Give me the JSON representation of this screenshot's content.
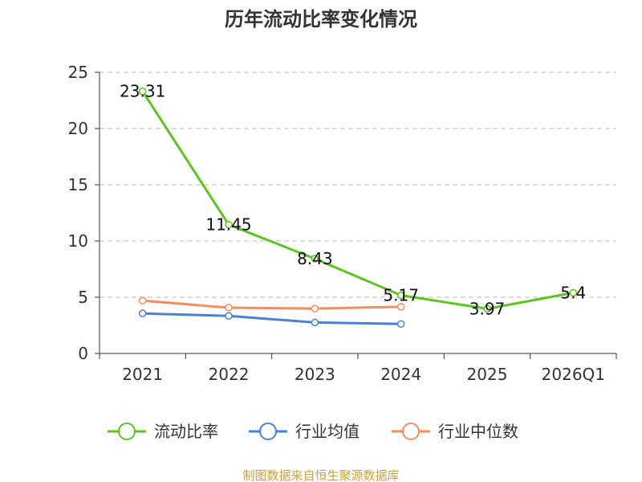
{
  "colors": {
    "current_ratio": "#5cc41e",
    "industry_avg": "#4a7fd9",
    "industry_median": "#f58d5b",
    "axis": "#333333",
    "grid": "#bbbbbb",
    "source": "#c8a23e"
  },
  "source_text": "制图数据来自恒生聚源数据库",
  "chart_data": {
    "type": "line",
    "title": "历年流动比率变化情况",
    "categories": [
      "2021",
      "2022",
      "2023",
      "2024",
      "2025",
      "2026Q1"
    ],
    "ylim": [
      0,
      25
    ],
    "yticks": [
      0,
      5,
      10,
      15,
      20,
      25
    ],
    "grid": true,
    "legend_position": "bottom",
    "series": [
      {
        "name": "流动比率",
        "color_key": "current_ratio",
        "values": [
          23.31,
          11.45,
          8.43,
          5.17,
          3.97,
          5.4
        ],
        "labels": [
          "23.31",
          "11.45",
          "8.43",
          "5.17",
          "3.97",
          "5.4"
        ]
      },
      {
        "name": "行业均值",
        "color_key": "industry_avg",
        "values": [
          3.56,
          3.34,
          2.76,
          2.62,
          null,
          null
        ]
      },
      {
        "name": "行业中位数",
        "color_key": "industry_median",
        "values": [
          4.7,
          4.07,
          3.99,
          4.15,
          null,
          null
        ]
      }
    ]
  }
}
